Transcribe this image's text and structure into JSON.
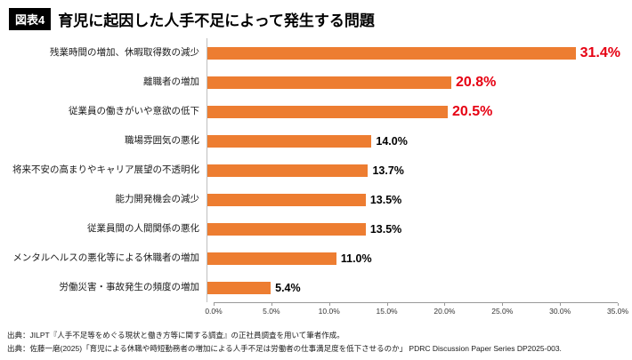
{
  "header": {
    "badge": "図表4",
    "title": "育児に起因した人手不足によって発生する問題"
  },
  "chart_data": {
    "type": "bar",
    "orientation": "horizontal",
    "title": "育児に起因した人手不足によって発生する問題",
    "categories": [
      "残業時間の増加、休暇取得数の減少",
      "離職者の増加",
      "従業員の働きがいや意欲の低下",
      "職場雰囲気の悪化",
      "将来不安の高まりやキャリア展望の不透明化",
      "能力開発機会の減少",
      "従業員間の人間関係の悪化",
      "メンタルヘルスの悪化等による休職者の増加",
      "労働災害・事故発生の頻度の増加"
    ],
    "values": [
      31.4,
      20.8,
      20.5,
      14.0,
      13.7,
      13.5,
      13.5,
      11.0,
      5.4
    ],
    "value_labels": [
      "31.4%",
      "20.8%",
      "20.5%",
      "14.0%",
      "13.7%",
      "13.5%",
      "13.5%",
      "11.0%",
      "5.4%"
    ],
    "highlighted_indices": [
      0,
      1,
      2
    ],
    "bar_color": "#ED7D31",
    "highlight_color": "#E60012",
    "value_label_color": "#000000",
    "xlim": [
      0,
      35
    ],
    "x_ticks": [
      "0.0%",
      "5.0%",
      "10.0%",
      "15.0%",
      "20.0%",
      "25.0%",
      "30.0%",
      "35.0%"
    ],
    "xlabel": "",
    "ylabel": "",
    "grid": false,
    "legend": "none"
  },
  "footer": {
    "line1": "出典：JILPT『人手不足等をめぐる現状と働き方等に関する調査』の正社員調査を用いて筆者作成。",
    "line2": "出典：佐藤一磨(2025)「育児による休職や時短勤務者の増加による人手不足は労働者の仕事満足度を低下させるのか」 PDRC Discussion Paper Series DP2025-003."
  }
}
